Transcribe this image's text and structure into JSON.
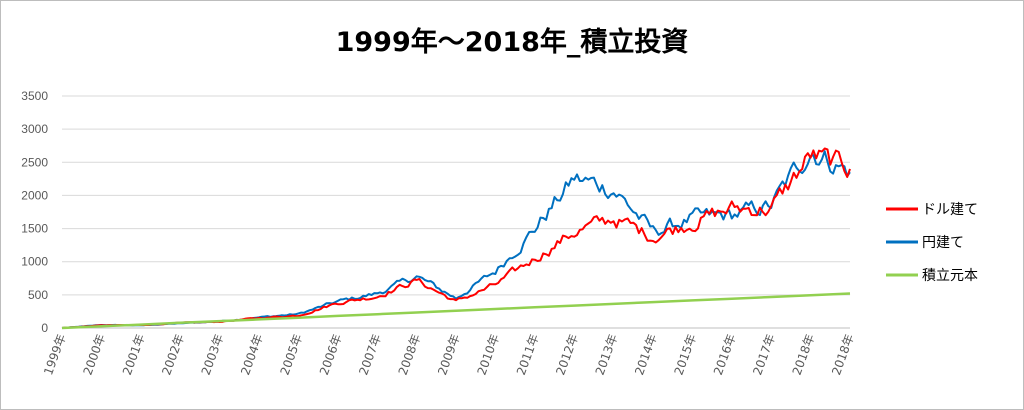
{
  "chart_data": {
    "type": "line",
    "title": "1999年～2018年_積立投資",
    "x": [
      "1999年",
      "2000年",
      "2001年",
      "2002年",
      "2003年",
      "2004年",
      "2005年",
      "2006年",
      "2007年",
      "2008年",
      "2009年",
      "2010年",
      "2011年",
      "2012年",
      "2013年",
      "2014年",
      "2015年",
      "2016年",
      "2017年",
      "2018年",
      "2018年"
    ],
    "ylim": [
      0,
      3500
    ],
    "yticks": [
      0,
      500,
      1000,
      1500,
      2000,
      2500,
      3000,
      3500
    ],
    "grid": true,
    "legend": "right",
    "series": [
      {
        "name": "ドル建て",
        "color": "#ff0000",
        "values": [
          0,
          40,
          45,
          75,
          95,
          150,
          190,
          380,
          480,
          720,
          400,
          650,
          1050,
          1450,
          1650,
          1380,
          1600,
          1800,
          1800,
          2600,
          2400
        ]
      },
      {
        "name": "円建て",
        "color": "#0070c0",
        "values": [
          0,
          45,
          40,
          70,
          100,
          160,
          210,
          400,
          520,
          780,
          450,
          850,
          1500,
          2250,
          2100,
          1450,
          1650,
          1700,
          1850,
          2700,
          2350
        ]
      },
      {
        "name": "積立元本",
        "color": "#92d050",
        "values": [
          0,
          26,
          52,
          78,
          104,
          130,
          156,
          182,
          208,
          234,
          260,
          286,
          312,
          338,
          364,
          390,
          416,
          442,
          468,
          494,
          520
        ]
      }
    ]
  }
}
